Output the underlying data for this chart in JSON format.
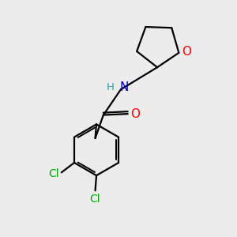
{
  "bg_color": "#ececec",
  "bond_color": "#000000",
  "o_color": "#ff0000",
  "n_color": "#0000cd",
  "cl_color": "#00aa00",
  "h_color": "#2aa0a0",
  "line_width": 1.6,
  "font_size": 10,
  "figsize": [
    3.0,
    3.0
  ],
  "dpi": 100,
  "xlim": [
    0,
    10
  ],
  "ylim": [
    0,
    10
  ]
}
